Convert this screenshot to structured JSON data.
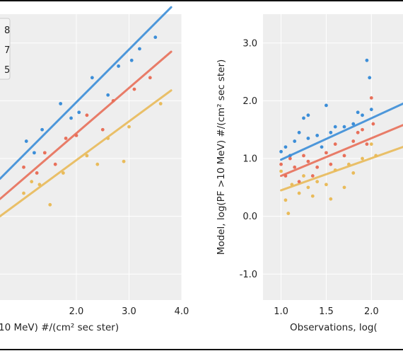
{
  "colors": {
    "series": [
      "#3c8ed8",
      "#e8705a",
      "#e9bb5a"
    ],
    "panel_bg": "#eeeeee",
    "grid": "#ffffff",
    "frame": "#111111"
  },
  "chart_data": [
    {
      "type": "scatter",
      "title": "",
      "xlabel": "10 MeV) #/(cm² sec ster)",
      "ylabel": "",
      "xlim": [
        0.55,
        4.0
      ],
      "ylim": [
        -1.45,
        3.5
      ],
      "x_ticks": [
        2.0,
        3.0,
        4.0
      ],
      "x_tick_labels": [
        "2.0",
        "3.0",
        "4.0"
      ],
      "y_ticks": [
        -1.0,
        0.0,
        1.0,
        2.0,
        3.0
      ],
      "grid": true,
      "legend": {
        "placement": "top-left",
        "labels": [
          "8",
          "7",
          "5"
        ]
      },
      "series": [
        {
          "points": [
            [
              1.05,
              1.3
            ],
            [
              1.35,
              1.5
            ],
            [
              1.7,
              1.95
            ],
            [
              2.3,
              2.4
            ],
            [
              2.8,
              2.6
            ],
            [
              3.2,
              2.9
            ],
            [
              1.9,
              1.7
            ],
            [
              2.6,
              2.1
            ],
            [
              3.5,
              3.1
            ],
            [
              1.2,
              1.1
            ],
            [
              2.05,
              1.8
            ],
            [
              3.05,
              2.7
            ]
          ],
          "fit": [
            [
              0.55,
              0.65
            ],
            [
              3.8,
              3.62
            ]
          ]
        },
        {
          "points": [
            [
              1.0,
              0.85
            ],
            [
              1.4,
              1.1
            ],
            [
              1.8,
              1.35
            ],
            [
              2.2,
              1.75
            ],
            [
              2.7,
              2.0
            ],
            [
              3.1,
              2.2
            ],
            [
              1.6,
              0.9
            ],
            [
              2.5,
              1.5
            ],
            [
              3.4,
              2.4
            ],
            [
              1.25,
              0.75
            ],
            [
              2.0,
              1.4
            ]
          ],
          "fit": [
            [
              0.55,
              0.3
            ],
            [
              3.8,
              2.85
            ]
          ]
        },
        {
          "points": [
            [
              1.0,
              0.4
            ],
            [
              1.3,
              0.55
            ],
            [
              1.75,
              0.75
            ],
            [
              2.2,
              1.05
            ],
            [
              2.6,
              1.35
            ],
            [
              3.0,
              1.55
            ],
            [
              3.6,
              1.95
            ],
            [
              1.5,
              0.2
            ],
            [
              2.4,
              0.9
            ],
            [
              1.15,
              0.6
            ],
            [
              2.9,
              0.95
            ]
          ],
          "fit": [
            [
              0.55,
              0.0
            ],
            [
              3.8,
              2.18
            ]
          ]
        }
      ]
    },
    {
      "type": "scatter",
      "title": "",
      "xlabel": "Observations, log(",
      "ylabel": "Model, log(PF >10 MeV) #/(cm² sec ster)",
      "xlim": [
        0.8,
        2.35
      ],
      "ylim": [
        -1.45,
        3.5
      ],
      "x_ticks": [
        1.0,
        1.5,
        2.0
      ],
      "x_tick_labels": [
        "1.0",
        "1.5",
        "2.0"
      ],
      "y_ticks": [
        -1.0,
        0.0,
        1.0,
        2.0,
        3.0
      ],
      "y_tick_labels": [
        "-1.0",
        "0.0",
        "1.0",
        "2.0",
        "3.0"
      ],
      "grid": true,
      "series": [
        {
          "points": [
            [
              1.0,
              1.12
            ],
            [
              1.05,
              1.2
            ],
            [
              1.1,
              1.05
            ],
            [
              1.15,
              1.3
            ],
            [
              1.2,
              1.45
            ],
            [
              1.25,
              1.7
            ],
            [
              1.3,
              1.35
            ],
            [
              1.4,
              1.4
            ],
            [
              1.5,
              1.92
            ],
            [
              1.55,
              1.45
            ],
            [
              1.6,
              1.55
            ],
            [
              1.7,
              1.55
            ],
            [
              1.8,
              1.6
            ],
            [
              1.85,
              1.8
            ],
            [
              1.9,
              1.75
            ],
            [
              1.95,
              2.7
            ],
            [
              1.98,
              2.4
            ],
            [
              2.0,
              1.85
            ],
            [
              1.3,
              1.75
            ],
            [
              1.45,
              1.2
            ]
          ],
          "fit": [
            [
              1.0,
              0.98
            ],
            [
              2.35,
              1.95
            ]
          ]
        },
        {
          "points": [
            [
              1.0,
              0.9
            ],
            [
              1.05,
              0.7
            ],
            [
              1.1,
              1.0
            ],
            [
              1.15,
              0.85
            ],
            [
              1.2,
              0.6
            ],
            [
              1.25,
              1.05
            ],
            [
              1.3,
              0.95
            ],
            [
              1.4,
              0.85
            ],
            [
              1.5,
              1.1
            ],
            [
              1.6,
              1.25
            ],
            [
              1.7,
              1.05
            ],
            [
              1.8,
              1.3
            ],
            [
              1.9,
              1.5
            ],
            [
              1.95,
              1.25
            ],
            [
              2.0,
              2.05
            ],
            [
              2.02,
              1.6
            ],
            [
              1.35,
              0.7
            ],
            [
              1.55,
              0.9
            ],
            [
              1.85,
              1.45
            ]
          ],
          "fit": [
            [
              1.0,
              0.7
            ],
            [
              2.35,
              1.58
            ]
          ]
        },
        {
          "points": [
            [
              1.0,
              0.78
            ],
            [
              1.05,
              0.28
            ],
            [
              1.08,
              0.05
            ],
            [
              1.12,
              0.55
            ],
            [
              1.2,
              0.4
            ],
            [
              1.25,
              0.7
            ],
            [
              1.3,
              0.5
            ],
            [
              1.4,
              0.6
            ],
            [
              1.5,
              0.55
            ],
            [
              1.6,
              0.8
            ],
            [
              1.7,
              0.5
            ],
            [
              1.8,
              0.75
            ],
            [
              1.9,
              1.0
            ],
            [
              2.0,
              1.25
            ],
            [
              2.05,
              1.05
            ],
            [
              1.35,
              0.35
            ],
            [
              1.55,
              0.3
            ],
            [
              1.75,
              0.9
            ]
          ],
          "fit": [
            [
              1.0,
              0.45
            ],
            [
              2.35,
              1.2
            ]
          ]
        }
      ]
    }
  ]
}
